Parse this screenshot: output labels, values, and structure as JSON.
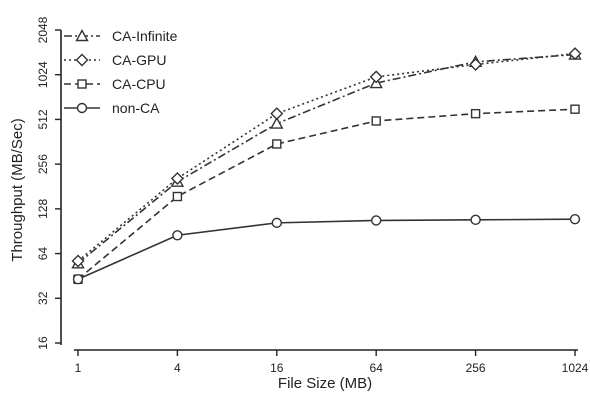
{
  "chart_data": {
    "type": "line",
    "title": "",
    "xlabel": "File Size (MB)",
    "ylabel": "Throughput (MB/Sec)",
    "x_scale": "log2",
    "y_scale": "log2",
    "x": [
      1,
      4,
      16,
      64,
      256,
      1024
    ],
    "x_tick_labels": [
      "1",
      "4",
      "16",
      "64",
      "256",
      "1024"
    ],
    "y_ticks": [
      16,
      32,
      64,
      128,
      256,
      512,
      1024,
      2048
    ],
    "y_tick_labels": [
      "16",
      "32",
      "64",
      "128",
      "256",
      "512",
      "1024",
      "2048"
    ],
    "xlim": [
      1,
      1024
    ],
    "ylim": [
      16,
      2048
    ],
    "grid": false,
    "legend_position": "top-left",
    "series": [
      {
        "name": "CA-Infinite",
        "marker": "triangle",
        "dash": "dashdot",
        "values": [
          55,
          195,
          480,
          900,
          1250,
          1400
        ]
      },
      {
        "name": "CA-GPU",
        "marker": "diamond",
        "dash": "dotted",
        "values": [
          57,
          205,
          560,
          990,
          1200,
          1420
        ]
      },
      {
        "name": "CA-CPU",
        "marker": "square",
        "dash": "dashed",
        "values": [
          43,
          155,
          350,
          500,
          560,
          600
        ]
      },
      {
        "name": "non-CA",
        "marker": "circle",
        "dash": "solid",
        "values": [
          43,
          85,
          103,
          107,
          108,
          109
        ]
      }
    ]
  }
}
